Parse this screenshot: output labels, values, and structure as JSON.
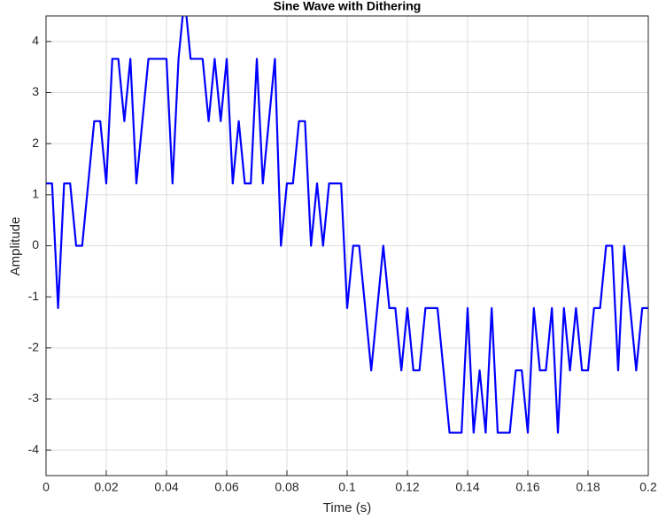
{
  "chart_data": {
    "type": "line",
    "title": "Sine Wave with Dithering",
    "x_label": "Time (s)",
    "y_label": "Amplitude",
    "x": [
      0,
      0.002,
      0.004,
      0.006,
      0.008,
      0.01,
      0.012,
      0.014,
      0.016,
      0.018,
      0.02,
      0.022,
      0.024,
      0.026,
      0.028,
      0.03,
      0.032,
      0.034,
      0.036,
      0.038,
      0.04,
      0.042,
      0.044,
      0.046,
      0.048,
      0.05,
      0.052,
      0.054,
      0.056,
      0.058,
      0.06,
      0.062,
      0.064,
      0.066,
      0.068,
      0.07,
      0.072,
      0.074,
      0.076,
      0.078,
      0.08,
      0.082,
      0.084,
      0.086,
      0.088,
      0.09,
      0.092,
      0.094,
      0.096,
      0.098,
      0.1,
      0.102,
      0.104,
      0.106,
      0.108,
      0.11,
      0.112,
      0.114,
      0.116,
      0.118,
      0.12,
      0.122,
      0.124,
      0.126,
      0.128,
      0.13,
      0.132,
      0.134,
      0.136,
      0.138,
      0.14,
      0.142,
      0.144,
      0.146,
      0.148,
      0.15,
      0.152,
      0.154,
      0.156,
      0.158,
      0.16,
      0.162,
      0.164,
      0.166,
      0.168,
      0.17,
      0.172,
      0.174,
      0.176,
      0.178,
      0.18,
      0.182,
      0.184,
      0.186,
      0.188,
      0.19,
      0.192,
      0.194,
      0.196,
      0.198,
      0.2
    ],
    "values": [
      1.22,
      1.22,
      -1.22,
      1.22,
      1.22,
      0,
      0,
      1.22,
      2.44,
      2.44,
      1.22,
      3.66,
      3.66,
      2.44,
      3.66,
      1.22,
      2.44,
      3.66,
      3.66,
      3.66,
      3.66,
      1.22,
      3.66,
      4.88,
      3.66,
      3.66,
      3.66,
      2.44,
      3.66,
      2.44,
      3.66,
      1.22,
      2.44,
      1.22,
      1.22,
      3.66,
      1.22,
      2.44,
      3.66,
      0,
      1.22,
      1.22,
      2.44,
      2.44,
      0,
      1.22,
      0,
      1.22,
      1.22,
      1.22,
      -1.22,
      0,
      0,
      -1.22,
      -2.44,
      -1.22,
      0,
      -1.22,
      -1.22,
      -2.44,
      -1.22,
      -2.44,
      -2.44,
      -1.22,
      -1.22,
      -1.22,
      -2.44,
      -3.66,
      -3.66,
      -3.66,
      -1.22,
      -3.66,
      -2.44,
      -3.66,
      -1.22,
      -3.66,
      -3.66,
      -3.66,
      -2.44,
      -2.44,
      -3.66,
      -1.22,
      -2.44,
      -2.44,
      -1.22,
      -3.66,
      -1.22,
      -2.44,
      -1.22,
      -2.44,
      -2.44,
      -1.22,
      -1.22,
      0,
      0,
      -2.44,
      0,
      -1.22,
      -2.44,
      -1.22,
      -1.22
    ],
    "color": "#0000ff",
    "xlim": [
      0,
      0.2
    ],
    "xticks": [
      0,
      0.02,
      0.04,
      0.06,
      0.08,
      0.1,
      0.12,
      0.14,
      0.16,
      0.18,
      0.2
    ],
    "ylim": [
      -4.5,
      4.5
    ],
    "yticks": [
      -4,
      -3,
      -2,
      -1,
      0,
      1,
      2,
      3,
      4
    ],
    "grid": true
  }
}
